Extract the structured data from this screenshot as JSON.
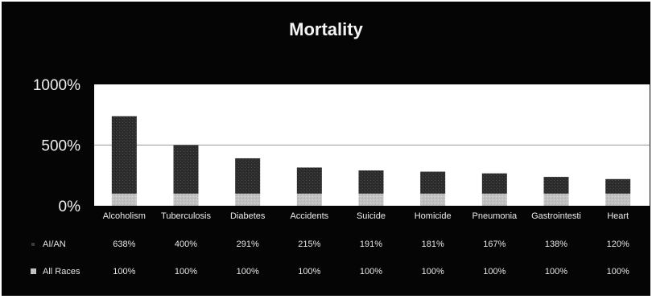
{
  "chart_data": {
    "type": "bar",
    "title": "Mortality",
    "categories": [
      "Alcoholism",
      "Tuberculosis",
      "Diabetes",
      "Accidents",
      "Suicide",
      "Homicide",
      "Pneumonia",
      "Gastrointesti",
      "Heart"
    ],
    "series": [
      {
        "name": "AI/AN",
        "values": [
          638,
          400,
          291,
          215,
          191,
          181,
          167,
          138,
          120
        ],
        "labels": [
          "638%",
          "400%",
          "291%",
          "215%",
          "191%",
          "181%",
          "167%",
          "138%",
          "120%"
        ],
        "color": "#2a2a2a"
      },
      {
        "name": "All Races",
        "values": [
          100,
          100,
          100,
          100,
          100,
          100,
          100,
          100,
          100
        ],
        "labels": [
          "100%",
          "100%",
          "100%",
          "100%",
          "100%",
          "100%",
          "100%",
          "100%",
          "100%"
        ],
        "color": "#bdbdbd"
      }
    ],
    "stacked": true,
    "ylim": [
      0,
      1000
    ],
    "yticks": [
      0,
      500,
      1000
    ],
    "ytick_labels": [
      "0%",
      "500%",
      "1000%"
    ],
    "grid": true,
    "legend": "data-table-left"
  }
}
